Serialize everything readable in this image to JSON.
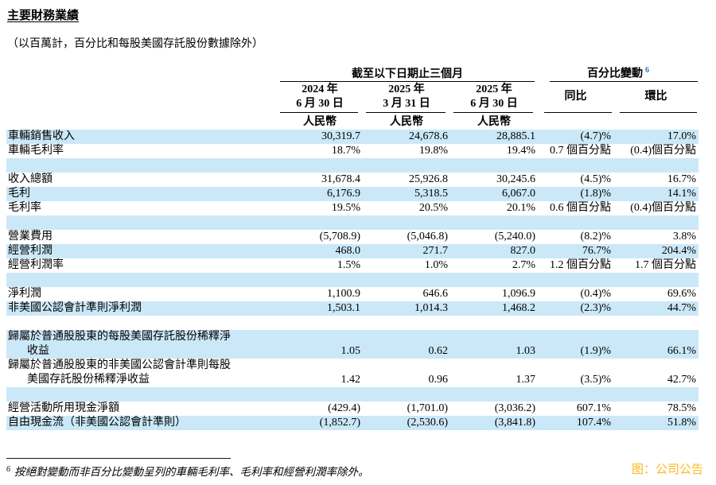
{
  "page": {
    "title": "主要財務業績",
    "subtitle": "（以百萬計，百分比和每股美國存託股份數據除外）",
    "footnote_marker": "6",
    "footnote_text": "按絕對變動而非百分比變動呈列的車輛毛利率、毛利率和經營利潤率除外。",
    "source": "图：公司公告",
    "colors": {
      "band_blue": "#cbe8f8",
      "footnote_ref_blue": "#2e74b5",
      "source_orange": "#ffb81c"
    }
  },
  "table": {
    "group_headers": {
      "periods": "截至以下日期止三個月",
      "change": "百分比變動",
      "change_footnote_ref": "6"
    },
    "columns": [
      {
        "line1": "2024 年",
        "line2": "6 月 30 日",
        "currency": "人民幣"
      },
      {
        "line1": "2025 年",
        "line2": "3 月 31 日",
        "currency": "人民幣"
      },
      {
        "line1": "2025 年",
        "line2": "6 月 30 日",
        "currency": "人民幣"
      }
    ],
    "change_columns": [
      {
        "label": "同比"
      },
      {
        "label": "環比"
      }
    ],
    "rows": [
      {
        "type": "data",
        "bg": "blue",
        "label": "車輛銷售收入",
        "v": [
          "30,319.7",
          "24,678.6",
          "28,885.1",
          "(4.7)%",
          "17.0%"
        ]
      },
      {
        "type": "data",
        "bg": "white",
        "label": "車輛毛利率",
        "v": [
          "18.7%",
          "19.8%",
          "19.4%",
          "0.7 個百分點",
          "(0.4)個百分點"
        ]
      },
      {
        "type": "spacer",
        "bg": "blue"
      },
      {
        "type": "data",
        "bg": "white",
        "label": "收入總額",
        "v": [
          "31,678.4",
          "25,926.8",
          "30,245.6",
          "(4.5)%",
          "16.7%"
        ]
      },
      {
        "type": "data",
        "bg": "blue",
        "label": "毛利",
        "v": [
          "6,176.9",
          "5,318.5",
          "6,067.0",
          "(1.8)%",
          "14.1%"
        ]
      },
      {
        "type": "data",
        "bg": "white",
        "label": "毛利率",
        "v": [
          "19.5%",
          "20.5%",
          "20.1%",
          "0.6 個百分點",
          "(0.4)個百分點"
        ]
      },
      {
        "type": "spacer",
        "bg": "blue"
      },
      {
        "type": "data",
        "bg": "white",
        "label": "營業費用",
        "v": [
          "(5,708.9)",
          "(5,046.8)",
          "(5,240.0)",
          "(8.2)%",
          "3.8%"
        ]
      },
      {
        "type": "data",
        "bg": "blue",
        "label": "經營利潤",
        "v": [
          "468.0",
          "271.7",
          "827.0",
          "76.7%",
          "204.4%"
        ]
      },
      {
        "type": "data",
        "bg": "white",
        "label": "經營利潤率",
        "v": [
          "1.5%",
          "1.0%",
          "2.7%",
          "1.2 個百分點",
          "1.7 個百分點"
        ]
      },
      {
        "type": "spacer",
        "bg": "blue"
      },
      {
        "type": "data",
        "bg": "white",
        "label": "淨利潤",
        "v": [
          "1,100.9",
          "646.6",
          "1,096.9",
          "(0.4)%",
          "69.6%"
        ]
      },
      {
        "type": "data",
        "bg": "blue",
        "label": "非美國公認會計準則淨利潤",
        "v": [
          "1,503.1",
          "1,014.3",
          "1,468.2",
          "(2.3)%",
          "44.7%"
        ]
      },
      {
        "type": "spacer",
        "bg": "white"
      },
      {
        "type": "data",
        "bg": "blue",
        "label": "歸屬於普通股股東的每股美國存託股份稀釋淨",
        "label2": "收益",
        "v": [
          "1.05",
          "0.62",
          "1.03",
          "(1.9)%",
          "66.1%"
        ]
      },
      {
        "type": "data",
        "bg": "white",
        "label": "歸屬於普通股股東的非美國公認會計準則每股",
        "label2": "美國存託股份稀釋淨收益",
        "v": [
          "1.42",
          "0.96",
          "1.37",
          "(3.5)%",
          "42.7%"
        ]
      },
      {
        "type": "spacer",
        "bg": "blue"
      },
      {
        "type": "data",
        "bg": "white",
        "label": "經營活動所用現金淨額",
        "v": [
          "(429.4)",
          "(1,701.0)",
          "(3,036.2)",
          "607.1%",
          "78.5%"
        ]
      },
      {
        "type": "data",
        "bg": "blue",
        "label": "自由現金流（非美國公認會計準則）",
        "v": [
          "(1,852.7)",
          "(2,530.6)",
          "(3,841.8)",
          "107.4%",
          "51.8%"
        ]
      }
    ]
  }
}
